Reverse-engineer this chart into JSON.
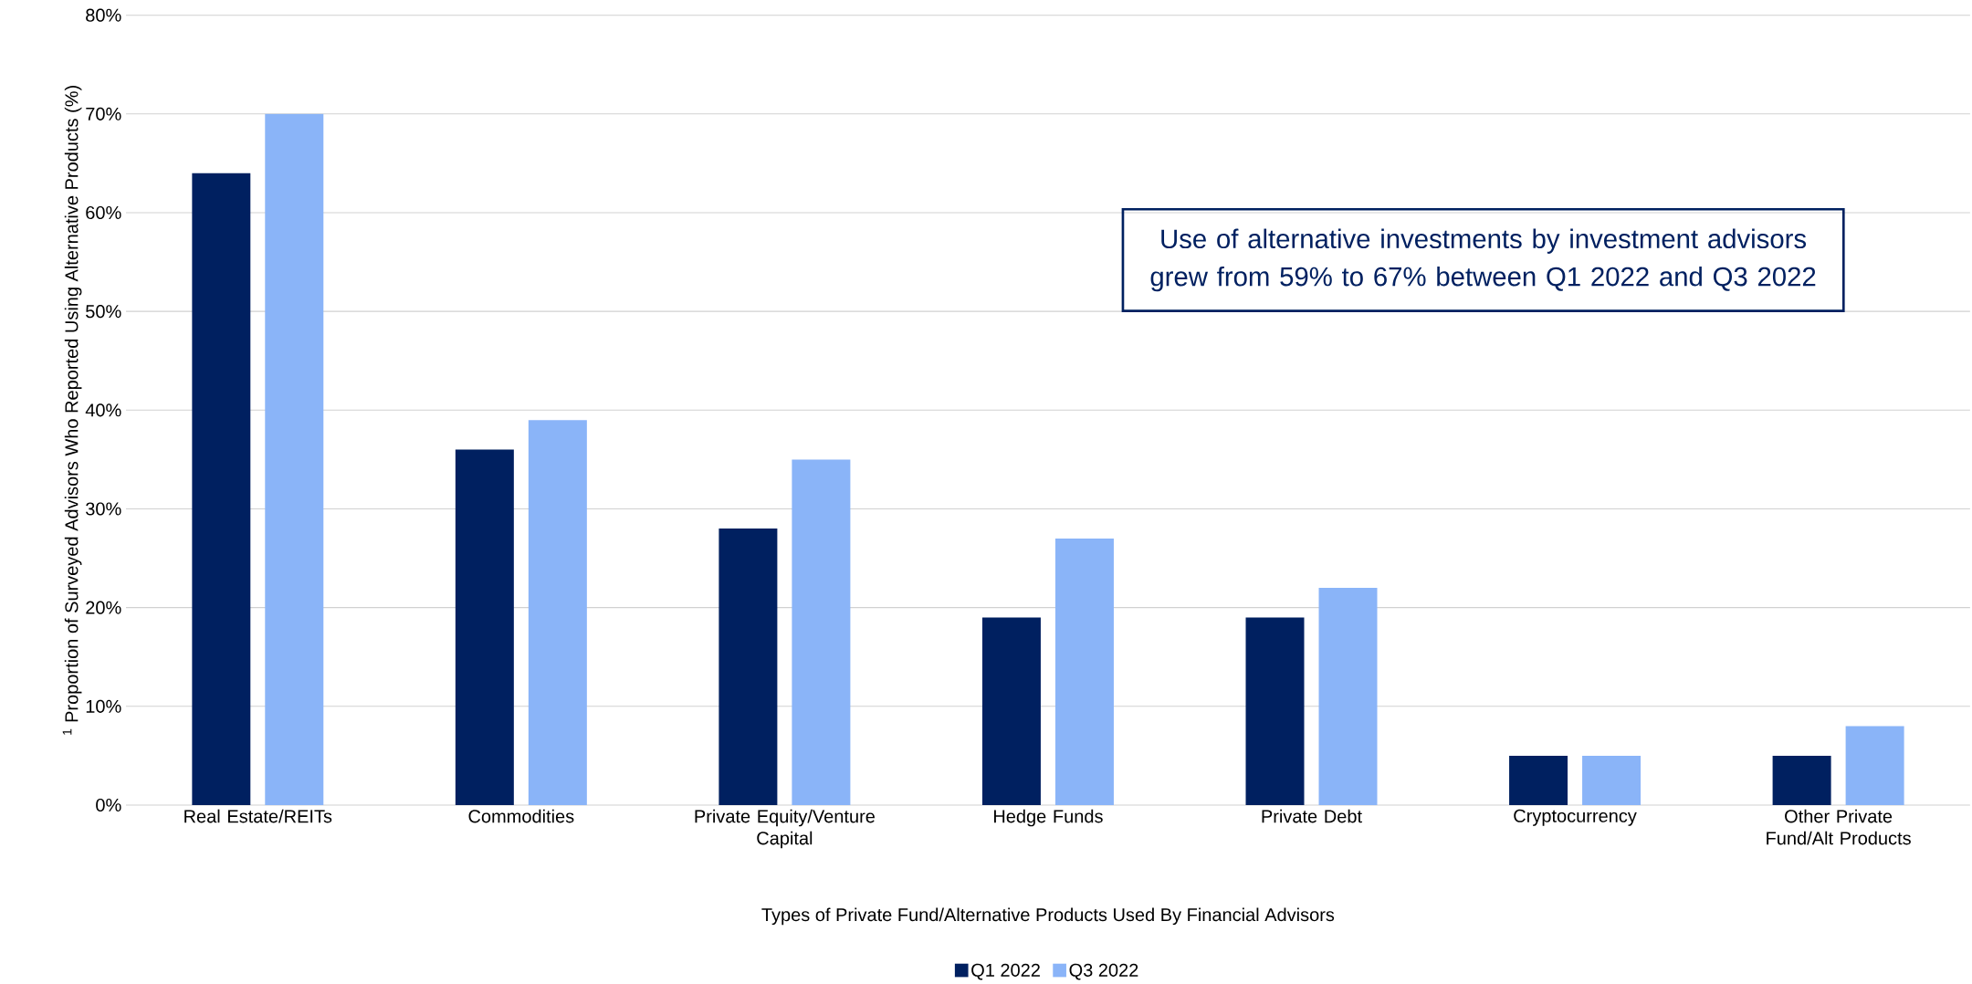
{
  "chart_data": {
    "type": "bar",
    "categories": [
      "Real Estate/REITs",
      "Commodities",
      "Private Equity/Venture Capital",
      "Hedge Funds",
      "Private Debt",
      "Cryptocurrency",
      "Other Private Fund/Alt Products"
    ],
    "series": [
      {
        "name": "Q1 2022",
        "color": "#002060",
        "values": [
          64,
          36,
          28,
          19,
          19,
          5,
          5
        ]
      },
      {
        "name": "Q3 2022",
        "color": "#8AB4F8",
        "values": [
          70,
          39,
          35,
          27,
          22,
          5,
          8
        ]
      }
    ],
    "xlabel": "Types of Private Fund/Alternative Products Used By Financial Advisors",
    "ylabel": "$^{1}$ Proportion of Surveyed Advisors Who Reported Using Alternative Products (%)",
    "ylim": [
      0,
      80
    ],
    "yticks": [
      {
        "value": 0,
        "label": "0%"
      },
      {
        "value": 10,
        "label": "10%"
      },
      {
        "value": 20,
        "label": "20%"
      },
      {
        "value": 30,
        "label": "30%"
      },
      {
        "value": 40,
        "label": "40%"
      },
      {
        "value": 50,
        "label": "50%"
      },
      {
        "value": 60,
        "label": "60%"
      },
      {
        "value": 70,
        "label": "70%"
      },
      {
        "value": 80,
        "label": "80%"
      }
    ],
    "annotations": [
      "Use of alternative investments by investment advisors grew from 59% to 67% between Q1 2022 and Q3 2022"
    ],
    "grid": "y",
    "legend": "bottom"
  }
}
